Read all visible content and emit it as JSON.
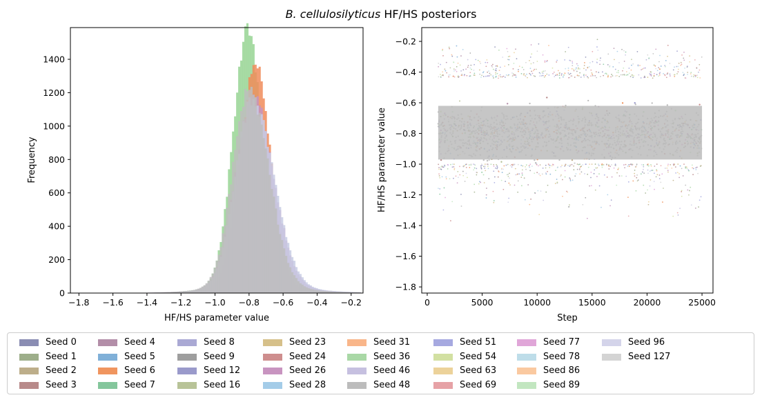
{
  "figure": {
    "title_italic": "B. cellulosilyticus",
    "title_rest": " HF/HS posteriors"
  },
  "chart_data": [
    {
      "type": "histogram",
      "xlabel": "HF/HS parameter value",
      "ylabel": "Frequency",
      "xlim": [
        -1.85,
        -0.13
      ],
      "ylim": [
        0,
        1590
      ],
      "xticks": [
        -1.8,
        -1.6,
        -1.4,
        -1.2,
        -1.0,
        -0.8,
        -0.6,
        -0.4,
        -0.2
      ],
      "xtick_labels": [
        "−1.8",
        "−1.6",
        "−1.4",
        "−1.2",
        "−1.0",
        "−0.8",
        "−0.6",
        "−0.4",
        "−0.2"
      ],
      "yticks": [
        0,
        200,
        400,
        600,
        800,
        1000,
        1200,
        1400
      ],
      "ytick_labels": [
        "0",
        "200",
        "400",
        "600",
        "800",
        "1000",
        "1200",
        "1400"
      ],
      "series": [
        {
          "name": "Seed 36",
          "color": "#98d594",
          "center": -0.81,
          "sigma_left": 0.085,
          "sigma_right": 0.09,
          "peak": 1510
        },
        {
          "name": "Seed 6",
          "color": "#f08c5a",
          "center": -0.76,
          "sigma_left": 0.09,
          "sigma_right": 0.085,
          "peak": 1340
        },
        {
          "name": "Seed 26",
          "color": "#c894c0",
          "center": -0.78,
          "sigma_left": 0.1,
          "sigma_right": 0.12,
          "peak": 1150
        },
        {
          "name": "Seed 96",
          "color": "#c8cce4",
          "center": -0.78,
          "sigma_left": 0.1,
          "sigma_right": 0.125,
          "peak": 1120
        },
        {
          "name": "Seed 48",
          "color": "#bdbdbd",
          "center": -0.8,
          "sigma_left": 0.095,
          "sigma_right": 0.115,
          "peak": 1180
        }
      ]
    },
    {
      "type": "scatter",
      "xlabel": "Step",
      "ylabel": "HF/HS parameter value",
      "xlim": [
        -500,
        26000
      ],
      "ylim": [
        -1.84,
        -0.11
      ],
      "xticks": [
        0,
        5000,
        10000,
        15000,
        20000,
        25000
      ],
      "xtick_labels": [
        "0",
        "5000",
        "10000",
        "15000",
        "20000",
        "25000"
      ],
      "yticks": [
        -1.8,
        -1.6,
        -1.4,
        -1.2,
        -1.0,
        -0.8,
        -0.6,
        -0.4,
        -0.2
      ],
      "ytick_labels": [
        "−1.8",
        "−1.6",
        "−1.4",
        "−1.2",
        "−1.0",
        "−0.8",
        "−0.6",
        "−0.4",
        "−0.2"
      ],
      "step_range": [
        1000,
        25000
      ],
      "core_range": [
        -1.02,
        -0.44
      ],
      "outlier_range": [
        -1.75,
        -0.17
      ]
    }
  ],
  "legend": {
    "items": [
      {
        "label": "Seed 0",
        "color": "#8a8db3"
      },
      {
        "label": "Seed 1",
        "color": "#9dae8a"
      },
      {
        "label": "Seed 2",
        "color": "#bdae8a"
      },
      {
        "label": "Seed 3",
        "color": "#b88a8a"
      },
      {
        "label": "Seed 4",
        "color": "#b38ea8"
      },
      {
        "label": "Seed 5",
        "color": "#80b0d8"
      },
      {
        "label": "Seed 6",
        "color": "#f0955f"
      },
      {
        "label": "Seed 7",
        "color": "#84c69c"
      },
      {
        "label": "Seed 8",
        "color": "#aaa9d4"
      },
      {
        "label": "Seed 9",
        "color": "#9e9e9e"
      },
      {
        "label": "Seed 12",
        "color": "#9a9acb"
      },
      {
        "label": "Seed 16",
        "color": "#b8c398"
      },
      {
        "label": "Seed 23",
        "color": "#d6c08a"
      },
      {
        "label": "Seed 24",
        "color": "#ce8e8e"
      },
      {
        "label": "Seed 26",
        "color": "#c894c0"
      },
      {
        "label": "Seed 28",
        "color": "#a4cce8"
      },
      {
        "label": "Seed 31",
        "color": "#f9b68a"
      },
      {
        "label": "Seed 36",
        "color": "#a9d8a6"
      },
      {
        "label": "Seed 46",
        "color": "#c6c0e0"
      },
      {
        "label": "Seed 48",
        "color": "#bcbcbc"
      },
      {
        "label": "Seed 51",
        "color": "#a6a9e0"
      },
      {
        "label": "Seed 54",
        "color": "#d2e0a2"
      },
      {
        "label": "Seed 63",
        "color": "#ecd29a"
      },
      {
        "label": "Seed 69",
        "color": "#e6a2a6"
      },
      {
        "label": "Seed 77",
        "color": "#e0a6d8"
      },
      {
        "label": "Seed 78",
        "color": "#bedde9"
      },
      {
        "label": "Seed 86",
        "color": "#fac9a0"
      },
      {
        "label": "Seed 89",
        "color": "#c2e6c0"
      },
      {
        "label": "Seed 96",
        "color": "#d4d4ea"
      },
      {
        "label": "Seed 127",
        "color": "#d4d4d4"
      }
    ]
  }
}
